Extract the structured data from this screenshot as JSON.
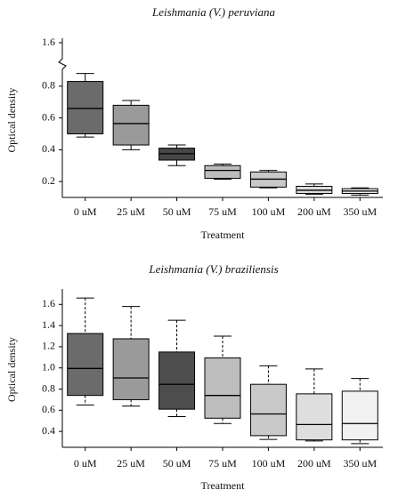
{
  "chart_data": [
    {
      "type": "box",
      "title": "Leishmania (V.) peruviana",
      "x_label": "Treatment",
      "y_label": "Optical density",
      "categories": [
        "0 uM",
        "25 uM",
        "50 uM",
        "75 uM",
        "100 uM",
        "200 uM",
        "350 uM"
      ],
      "colors": [
        "#6b6b6b",
        "#9a9a9a",
        "#474747",
        "#bdbdbd",
        "#c9c9c9",
        "#dcdcdc",
        "#ececec"
      ],
      "whisker_style": "solid",
      "values": [
        {
          "min": 0.48,
          "q1": 0.5,
          "median": 0.66,
          "q3": 0.83,
          "max": 0.88
        },
        {
          "min": 0.4,
          "q1": 0.43,
          "median": 0.565,
          "q3": 0.68,
          "max": 0.71
        },
        {
          "min": 0.3,
          "q1": 0.335,
          "median": 0.375,
          "q3": 0.41,
          "max": 0.43
        },
        {
          "min": 0.215,
          "q1": 0.22,
          "median": 0.27,
          "q3": 0.3,
          "max": 0.31
        },
        {
          "min": 0.16,
          "q1": 0.165,
          "median": 0.215,
          "q3": 0.26,
          "max": 0.27
        },
        {
          "min": 0.12,
          "q1": 0.125,
          "median": 0.145,
          "q3": 0.17,
          "max": 0.185
        },
        {
          "min": 0.115,
          "q1": 0.125,
          "median": 0.14,
          "q3": 0.155,
          "max": 0.16
        }
      ],
      "ylim": [
        0.1,
        1.6
      ],
      "axis_break": [
        0.85,
        1.55
      ],
      "yticks": [
        0.2,
        0.4,
        0.6,
        0.8,
        1.6
      ]
    },
    {
      "type": "box",
      "title": "Leishmania (V.) braziliensis",
      "x_label": "Treatment",
      "y_label": "Optical density",
      "categories": [
        "0 uM",
        "25 uM",
        "50 uM",
        "75 uM",
        "100 uM",
        "200 uM",
        "350 uM"
      ],
      "colors": [
        "#6b6b6b",
        "#9a9a9a",
        "#4d4d4d",
        "#bdbdbd",
        "#c9c9c9",
        "#dedede",
        "#f2f2f2"
      ],
      "whisker_style": "dashed",
      "values": [
        {
          "min": 0.65,
          "q1": 0.74,
          "median": 0.995,
          "q3": 1.325,
          "max": 1.66
        },
        {
          "min": 0.64,
          "q1": 0.7,
          "median": 0.905,
          "q3": 1.275,
          "max": 1.58
        },
        {
          "min": 0.54,
          "q1": 0.61,
          "median": 0.845,
          "q3": 1.15,
          "max": 1.45
        },
        {
          "min": 0.475,
          "q1": 0.525,
          "median": 0.74,
          "q3": 1.095,
          "max": 1.3
        },
        {
          "min": 0.325,
          "q1": 0.36,
          "median": 0.565,
          "q3": 0.845,
          "max": 1.02
        },
        {
          "min": 0.31,
          "q1": 0.32,
          "median": 0.465,
          "q3": 0.755,
          "max": 0.99
        },
        {
          "min": 0.285,
          "q1": 0.32,
          "median": 0.475,
          "q3": 0.78,
          "max": 0.9
        }
      ],
      "ylim": [
        0.25,
        1.72
      ],
      "yticks": [
        0.4,
        0.6,
        0.8,
        {
          "value": 1,
          "label": "1.0"
        },
        1.2,
        1.4,
        1.6
      ]
    }
  ]
}
